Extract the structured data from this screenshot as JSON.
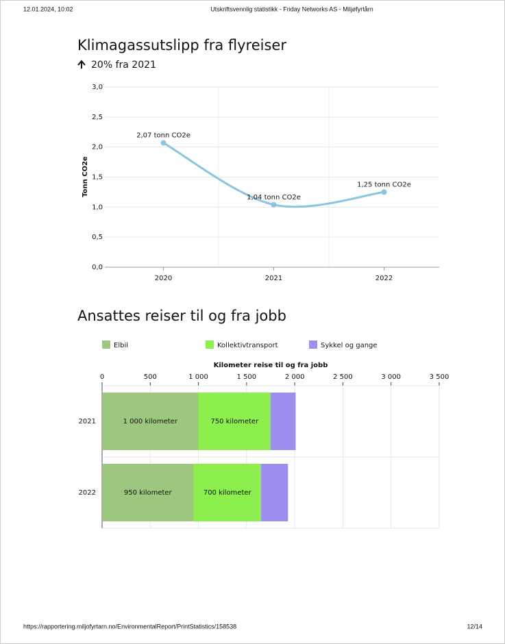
{
  "header": {
    "timestamp": "12.01.2024, 10:02",
    "title": "Utskriftsvennlig statistikk - Friday Networks AS - Miljøfyrtårn"
  },
  "footer": {
    "url": "https://rapportering.miljofyrtarn.no/EnvironmentalReport/PrintStatistics/158538",
    "page": "12/14"
  },
  "chart_data": [
    {
      "type": "line",
      "title": "Klimagassutslipp fra flyreiser",
      "subtitle": "20% fra 2021",
      "y_label": "Tonn CO2e",
      "categories": [
        "2020",
        "2021",
        "2022"
      ],
      "values": [
        2.07,
        1.04,
        1.25
      ],
      "value_labels": [
        "2,07 tonn CO2e",
        "1,04 tonn CO2e",
        "1,25 tonn CO2e"
      ],
      "color": "#89c4e1",
      "ylim": [
        0,
        3
      ],
      "yticks": [
        {
          "value": 0,
          "label": "0,0"
        },
        {
          "value": 0.5,
          "label": "0,5"
        },
        {
          "value": 1,
          "label": "1,0"
        },
        {
          "value": 1.5,
          "label": "1,5"
        },
        {
          "value": 2,
          "label": "2,0"
        },
        {
          "value": 2.5,
          "label": "2,5"
        },
        {
          "value": 3,
          "label": "3,0"
        }
      ],
      "grid": true
    },
    {
      "type": "stacked-hbar",
      "title": "Ansattes reiser til og fra jobb",
      "x_label": "Kilometer reise til og fra jobb",
      "categories": [
        "2021",
        "2022"
      ],
      "legend": "top",
      "series": [
        {
          "name": "Elbil",
          "color": "#9dc77f",
          "values": [
            1000,
            950
          ],
          "value_labels": [
            "1 000 kilometer",
            "950 kilometer"
          ]
        },
        {
          "name": "Kollektivtransport",
          "color": "#8cef4e",
          "values": [
            750,
            700
          ],
          "value_labels": [
            "750 kilometer",
            "700 kilometer"
          ]
        },
        {
          "name": "Sykkel og gange",
          "color": "#9e8ef0",
          "values": [
            260,
            280
          ]
        }
      ],
      "xlim": [
        0,
        3500
      ],
      "xticks": [
        0,
        500,
        {
          "value": 1000,
          "label": "1 000"
        },
        {
          "value": 1500,
          "label": "1 500"
        },
        {
          "value": 2000,
          "label": "2 000"
        },
        {
          "value": 2500,
          "label": "2 500"
        },
        {
          "value": 3000,
          "label": "3 000"
        },
        {
          "value": 3500,
          "label": "3 500"
        }
      ],
      "grid": true
    }
  ]
}
